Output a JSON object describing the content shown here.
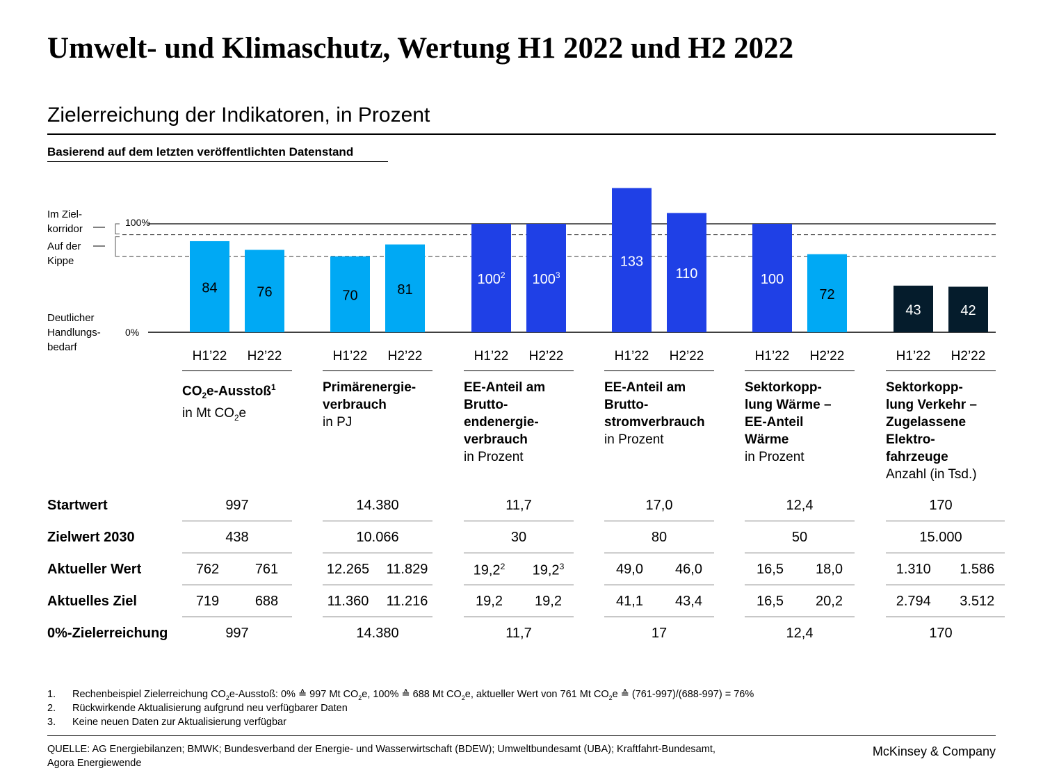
{
  "title": "Umwelt- und Klimaschutz, Wertung H1 2022 und H2 2022",
  "subtitle": "Zielerreichung der Indikatoren, in Prozent",
  "basis_label": "Basierend auf dem letzten veröffentlichten Datenstand",
  "legend": {
    "im_zielkorridor": [
      "Im Ziel-",
      "korridor"
    ],
    "auf_der_kippe": [
      "Auf der",
      "Kippe"
    ],
    "handlungsbedarf": [
      "Deutlicher",
      "Handlungs-",
      "bedarf"
    ]
  },
  "colors": {
    "light_blue": "#00a9f4",
    "blue": "#1f40e6",
    "dark_navy": "#051c2c"
  },
  "chart_data": {
    "type": "bar",
    "ylabel": "",
    "yticks": [
      "0%",
      "100%"
    ],
    "ylim": [
      0,
      140
    ],
    "reference_lines": [
      100,
      90,
      70
    ],
    "grid": false,
    "categories": [
      "CO2e-Ausstoß",
      "Primärenergieverbrauch",
      "EE-Anteil am Bruttoendenergieverbrauch",
      "EE-Anteil am Bruttostromverbrauch",
      "Sektorkopplung Wärme – EE-Anteil Wärme",
      "Sektorkopplung Verkehr – Zugelassene Elektrofahrzeuge"
    ],
    "series": [
      {
        "name": "H1’22",
        "values": [
          84,
          70,
          100,
          133,
          100,
          43
        ],
        "labels": [
          "84",
          "70",
          "100",
          "133",
          "100",
          "43"
        ],
        "sup": [
          "",
          "",
          "2",
          "",
          "",
          ""
        ],
        "colors": [
          "#00a9f4",
          "#00a9f4",
          "#1f40e6",
          "#1f40e6",
          "#1f40e6",
          "#051c2c"
        ]
      },
      {
        "name": "H2’22",
        "values": [
          76,
          81,
          100,
          110,
          72,
          42
        ],
        "labels": [
          "76",
          "81",
          "100",
          "110",
          "72",
          "42"
        ],
        "sup": [
          "",
          "",
          "3",
          "",
          "",
          ""
        ],
        "colors": [
          "#00a9f4",
          "#00a9f4",
          "#1f40e6",
          "#1f40e6",
          "#00a9f4",
          "#051c2c"
        ]
      }
    ]
  },
  "categories": [
    {
      "bold_lines": [
        "CO<sub>2</sub>e-Ausstoß<sup>1</sup>"
      ],
      "unit": "in Mt CO<sub>2</sub>e"
    },
    {
      "bold_lines": [
        "Primärenergie-",
        "verbrauch"
      ],
      "unit": "in PJ"
    },
    {
      "bold_lines": [
        "EE-Anteil am",
        "Brutto-",
        "endenergie-",
        "verbrauch"
      ],
      "unit": "in Prozent"
    },
    {
      "bold_lines": [
        "EE-Anteil am",
        "Brutto-",
        "stromverbrauch"
      ],
      "unit": "in Prozent"
    },
    {
      "bold_lines": [
        "Sektorkopp-",
        "lung Wärme –",
        "EE-Anteil",
        "Wärme"
      ],
      "unit": "in Prozent"
    },
    {
      "bold_lines": [
        "Sektorkopp-",
        "lung Verkehr –",
        "Zugelassene",
        "Elektro-",
        "fahrzeuge"
      ],
      "unit": "Anzahl (in Tsd.)"
    }
  ],
  "table": {
    "rows": [
      {
        "label": "Startwert",
        "values": [
          [
            "997"
          ],
          [
            "14.380"
          ],
          [
            "11,7"
          ],
          [
            "17,0"
          ],
          [
            "12,4"
          ],
          [
            "170"
          ]
        ]
      },
      {
        "label": "Zielwert 2030",
        "values": [
          [
            "438"
          ],
          [
            "10.066"
          ],
          [
            "30"
          ],
          [
            "80"
          ],
          [
            "50"
          ],
          [
            "15.000"
          ]
        ]
      },
      {
        "label": "Aktueller Wert",
        "values": [
          [
            "762",
            "761"
          ],
          [
            "12.265",
            "11.829"
          ],
          [
            "19,2<sup>2</sup>",
            "19,2<sup>3</sup>"
          ],
          [
            "49,0",
            "46,0"
          ],
          [
            "16,5",
            "18,0"
          ],
          [
            "1.310",
            "1.586"
          ]
        ]
      },
      {
        "label": "Aktuelles Ziel",
        "values": [
          [
            "719",
            "688"
          ],
          [
            "11.360",
            "11.216"
          ],
          [
            "19,2",
            "19,2"
          ],
          [
            "41,1",
            "43,4"
          ],
          [
            "16,5",
            "20,2"
          ],
          [
            "2.794",
            "3.512"
          ]
        ]
      },
      {
        "label": "0%-Zielerreichung",
        "values": [
          [
            "997"
          ],
          [
            "14.380"
          ],
          [
            "11,7"
          ],
          [
            "17"
          ],
          [
            "12,4"
          ],
          [
            "170"
          ]
        ]
      }
    ]
  },
  "footnotes": [
    {
      "num": "1.",
      "text": "Rechenbeispiel Zielerreichung CO<sub>2</sub>e-Ausstoß: 0% ≙ 997 Mt CO<sub>2</sub>e, 100% ≙ 688 Mt CO<sub>2</sub>e, aktueller Wert von 761 Mt CO<sub>2</sub>e ≙ (761-997)/(688-997) = 76%"
    },
    {
      "num": "2.",
      "text": "Rückwirkende Aktualisierung aufgrund neu verfügbarer Daten"
    },
    {
      "num": "3.",
      "text": "Keine neuen Daten zur Aktualisierung verfügbar"
    }
  ],
  "source": "QUELLE: AG Energiebilanzen; BMWK; Bundesverband der Energie- und Wasserwirtschaft (BDEW); Umweltbundesamt (UBA); Kraftfahrt-Bundesamt, Agora Energiewende",
  "brand": "McKinsey & Company"
}
